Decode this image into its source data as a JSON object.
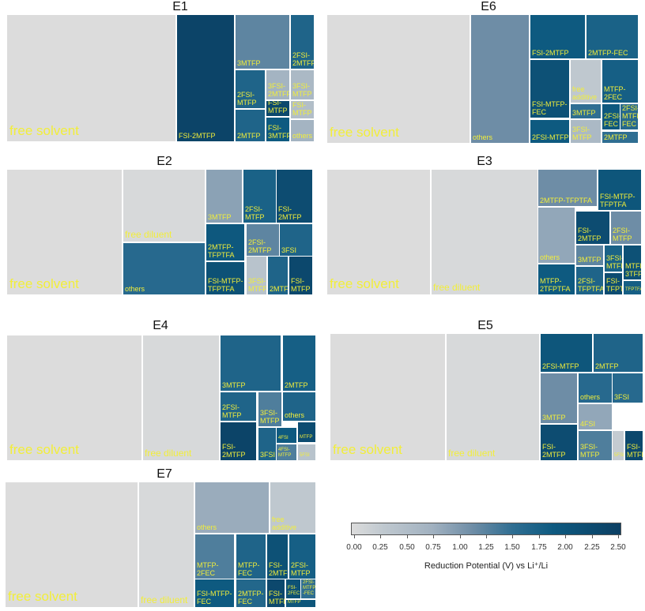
{
  "chart_data": [
    {
      "type": "treemap",
      "title": "E1",
      "cells": [
        {
          "label": "free solvent",
          "value": 0.0
        },
        {
          "label": "FSI-2MTFP",
          "value": 2.4
        },
        {
          "label": "3MTFP",
          "value": 1.2
        },
        {
          "label": "2FSI-\n2MTFP",
          "value": 1.7
        },
        {
          "label": "2FSI-\nMTFP",
          "value": 1.7
        },
        {
          "label": "3FSI-\n2MTFP",
          "value": 0.7
        },
        {
          "label": "3FSI-\nMTFP",
          "value": 0.6
        },
        {
          "label": "FSI-MTFP",
          "value": 2.3
        },
        {
          "label": "FSI-\nMTFP",
          "value": 0.5
        },
        {
          "label": "2MTFP",
          "value": 1.7
        },
        {
          "label": "FSI-\n3MTFP",
          "value": 1.9
        },
        {
          "label": "others",
          "value": 0.7
        }
      ]
    },
    {
      "type": "treemap",
      "title": "E6",
      "cells": [
        {
          "label": "free solvent",
          "value": 0.0
        },
        {
          "label": "others",
          "value": 1.1
        },
        {
          "label": "FSI-2MTFP",
          "value": 1.9
        },
        {
          "label": "2MTFP-FEC",
          "value": 1.75
        },
        {
          "label": "FSI-MTFP-\nFEC",
          "value": 2.1
        },
        {
          "label": "free\nadditive",
          "value": 0.3
        },
        {
          "label": "MTFP-\n2FEC",
          "value": 1.8
        },
        {
          "label": "3MTFP",
          "value": 1.5
        },
        {
          "label": "2FSI-\nFEC",
          "value": 1.95
        },
        {
          "label": "2FSI-\nMTFP-\nFEC",
          "value": 1.6
        },
        {
          "label": "2FSI-MTFP",
          "value": 1.9
        },
        {
          "label": "3FSI-\nMTFP",
          "value": 0.6
        },
        {
          "label": "2FSI-2MTFP",
          "value": 1.5
        }
      ]
    },
    {
      "type": "treemap",
      "title": "E2",
      "cells": [
        {
          "label": "free solvent",
          "value": 0.0
        },
        {
          "label": "free diluent",
          "value": 0.05
        },
        {
          "label": "others",
          "value": 1.6
        },
        {
          "label": "3MTFP",
          "value": 0.9
        },
        {
          "label": "2FSI-\nMTFP",
          "value": 1.75
        },
        {
          "label": "FSI-2MTFP",
          "value": 2.2
        },
        {
          "label": "2MTFP-\nTFPTFA",
          "value": 1.95
        },
        {
          "label": "2FSI-\n2MTFP",
          "value": 1.2
        },
        {
          "label": "3FSI",
          "value": 1.7
        },
        {
          "label": "FSI-MTFP-\nTFPTFA",
          "value": 2.1
        },
        {
          "label": "3FSI-\nMTFP",
          "value": 0.4
        },
        {
          "label": "2MTFP",
          "value": 1.7
        },
        {
          "label": "FSI-\nMTFP",
          "value": 2.3
        }
      ]
    },
    {
      "type": "treemap",
      "title": "E3",
      "cells": [
        {
          "label": "free solvent",
          "value": 0.0
        },
        {
          "label": "free diluent",
          "value": 0.05
        },
        {
          "label": "2MTFP-TFPTFA",
          "value": 1.1
        },
        {
          "label": "FSI-MTFP-\nTFPTFA",
          "value": 2.0
        },
        {
          "label": "others",
          "value": 0.85
        },
        {
          "label": "FSI-\n2MTFP",
          "value": 2.2
        },
        {
          "label": "2FSI-\nMTFP",
          "value": 1.1
        },
        {
          "label": "3MTFP",
          "value": 1.2
        },
        {
          "label": "MTFP-\n2TFPTFA",
          "value": 1.9
        },
        {
          "label": "2FSI-\nTFPTFA",
          "value": 1.7
        },
        {
          "label": "3FSI-\nMTFP",
          "value": 1.75
        },
        {
          "label": "FSI-\nTFPTFA",
          "value": 2.2
        },
        {
          "label": "MTFP-\n3TFPTFA",
          "value": 2.1
        },
        {
          "label": "TFPTFA",
          "value": 1.8
        }
      ]
    },
    {
      "type": "treemap",
      "title": "E4",
      "cells": [
        {
          "label": "free solvent",
          "value": 0.0
        },
        {
          "label": "free diluent",
          "value": 0.05
        },
        {
          "label": "3MTFP",
          "value": 1.7
        },
        {
          "label": "2MTFP",
          "value": 1.8
        },
        {
          "label": "2FSI-MTFP",
          "value": 1.7
        },
        {
          "label": "3FSI-\nMTFP",
          "value": 1.3
        },
        {
          "label": "others",
          "value": 1.7
        },
        {
          "label": "FSI-2MTFP",
          "value": 2.4
        },
        {
          "label": "3FSI",
          "value": 1.7
        },
        {
          "label": "4FSI",
          "value": 1.9
        },
        {
          "label": "4FSI-\nMTFP",
          "value": 1.3
        },
        {
          "label": "MTFP",
          "value": 2.2
        },
        {
          "label": "5FSI",
          "value": 0.4
        }
      ]
    },
    {
      "type": "treemap",
      "title": "E5",
      "cells": [
        {
          "label": "free solvent",
          "value": 0.0
        },
        {
          "label": "free diluent",
          "value": 0.05
        },
        {
          "label": "2FSI-MTFP",
          "value": 2.0
        },
        {
          "label": "2MTFP",
          "value": 1.7
        },
        {
          "label": "3MTFP",
          "value": 1.1
        },
        {
          "label": "others",
          "value": 1.6
        },
        {
          "label": "3FSI",
          "value": 1.6
        },
        {
          "label": "4FSI",
          "value": 0.85
        },
        {
          "label": "FSI-2MTFP",
          "value": 2.2
        },
        {
          "label": "3FSI-MTFP",
          "value": 1.3
        },
        {
          "label": "5FSI",
          "value": 0.25
        },
        {
          "label": "FSI-\nMTFP",
          "value": 2.3
        }
      ]
    },
    {
      "type": "treemap",
      "title": "E7",
      "cells": [
        {
          "label": "free solvent",
          "value": 0.0
        },
        {
          "label": "free diluent",
          "value": 0.05
        },
        {
          "label": "others",
          "value": 0.8
        },
        {
          "label": "free\nadditive",
          "value": 0.3
        },
        {
          "label": "MTFP-2FEC",
          "value": 1.3
        },
        {
          "label": "MTFP-\nFEC",
          "value": 1.7
        },
        {
          "label": "FSI-\n2MTFP",
          "value": 2.1
        },
        {
          "label": "2FSI-\nMTFP",
          "value": 1.8
        },
        {
          "label": "FSI-MTFP-\nFEC",
          "value": 1.9
        },
        {
          "label": "2MTFP-\nFEC",
          "value": 1.65
        },
        {
          "label": "FSI-\nMTFP",
          "value": 2.3
        },
        {
          "label": "FSI-\n2FEC",
          "value": 2.1
        },
        {
          "label": "2FSI-\nMTFP\n-FEC",
          "value": 1.5
        },
        {
          "label": "MTFP",
          "value": 2.0
        }
      ]
    }
  ],
  "colorbar": {
    "label": "Reduction Potential (V) vs Li⁺/Li",
    "ticks": [
      "0.00",
      "0.25",
      "0.50",
      "0.75",
      "1.00",
      "1.25",
      "1.50",
      "1.75",
      "2.00",
      "2.25",
      "2.50"
    ],
    "range": [
      0,
      2.5
    ]
  }
}
